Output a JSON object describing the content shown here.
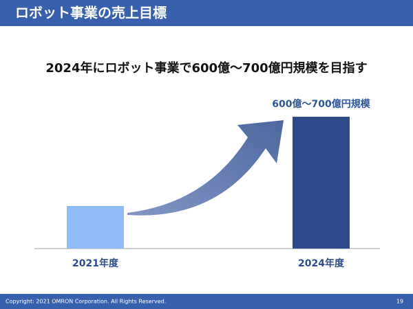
{
  "slide_title": "ロボット事業の売上目標",
  "chart_data": {
    "type": "bar",
    "title": "2024年にロボット事業で600億～700億円規模を目指す",
    "categories": [
      "2021年度",
      "2024年度"
    ],
    "values": [
      210,
      650
    ],
    "value_labels": [
      null,
      "600億～700億円規模"
    ],
    "colors": [
      "#8ebdf7",
      "#2d4b8a"
    ],
    "ylim": [
      0,
      650
    ]
  },
  "footer": {
    "copyright": "Copyright: 2021 OMRON Corporation. All Rights Reserved.",
    "page": 19
  }
}
